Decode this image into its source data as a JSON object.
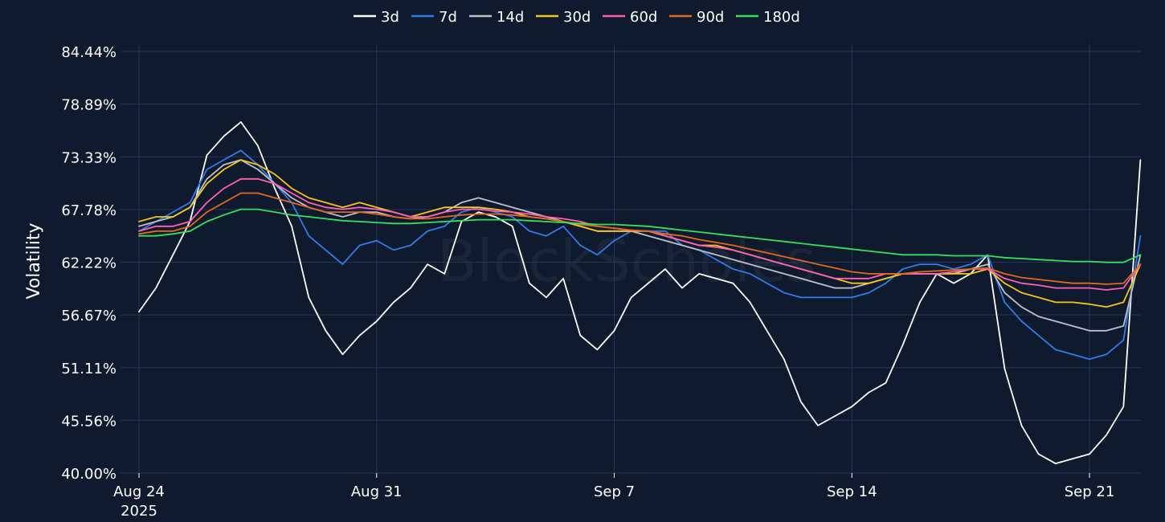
{
  "watermark": "BlockScholes",
  "chart_data": {
    "type": "line",
    "title": "",
    "xlabel": "",
    "ylabel": "Volatility",
    "y_unit": "%",
    "ylim": [
      40.0,
      84.44
    ],
    "y_ticks": [
      40.0,
      45.56,
      51.11,
      56.67,
      62.22,
      67.78,
      73.33,
      78.89,
      84.44
    ],
    "y_tick_labels": [
      "40.00%",
      "45.56%",
      "51.11%",
      "56.67%",
      "62.22%",
      "67.78%",
      "73.33%",
      "78.89%",
      "84.44%"
    ],
    "xlim": [
      "2025-08-24",
      "2025-09-22T18:00"
    ],
    "x_ticks": [
      {
        "date": "2025-08-24",
        "label": "Aug 24",
        "sublabel": "2025"
      },
      {
        "date": "2025-08-31",
        "label": "Aug 31",
        "sublabel": ""
      },
      {
        "date": "2025-09-07",
        "label": "Sep 7",
        "sublabel": ""
      },
      {
        "date": "2025-09-14",
        "label": "Sep 14",
        "sublabel": ""
      },
      {
        "date": "2025-09-21",
        "label": "Sep 21",
        "sublabel": ""
      }
    ],
    "grid": true,
    "legend_position": "top-center",
    "x": [
      "2025-08-24T00:00",
      "2025-08-24T12:00",
      "2025-08-25T00:00",
      "2025-08-25T12:00",
      "2025-08-26T00:00",
      "2025-08-26T12:00",
      "2025-08-27T00:00",
      "2025-08-27T12:00",
      "2025-08-28T00:00",
      "2025-08-28T12:00",
      "2025-08-29T00:00",
      "2025-08-29T12:00",
      "2025-08-30T00:00",
      "2025-08-30T12:00",
      "2025-08-31T00:00",
      "2025-08-31T12:00",
      "2025-09-01T00:00",
      "2025-09-01T12:00",
      "2025-09-02T00:00",
      "2025-09-02T12:00",
      "2025-09-03T00:00",
      "2025-09-03T12:00",
      "2025-09-04T00:00",
      "2025-09-04T12:00",
      "2025-09-05T00:00",
      "2025-09-05T12:00",
      "2025-09-06T00:00",
      "2025-09-06T12:00",
      "2025-09-07T00:00",
      "2025-09-07T12:00",
      "2025-09-08T00:00",
      "2025-09-08T12:00",
      "2025-09-09T00:00",
      "2025-09-09T12:00",
      "2025-09-10T00:00",
      "2025-09-10T12:00",
      "2025-09-11T00:00",
      "2025-09-11T12:00",
      "2025-09-12T00:00",
      "2025-09-12T12:00",
      "2025-09-13T00:00",
      "2025-09-13T12:00",
      "2025-09-14T00:00",
      "2025-09-14T12:00",
      "2025-09-15T00:00",
      "2025-09-15T12:00",
      "2025-09-16T00:00",
      "2025-09-16T12:00",
      "2025-09-17T00:00",
      "2025-09-17T12:00",
      "2025-09-18T00:00",
      "2025-09-18T12:00",
      "2025-09-19T00:00",
      "2025-09-19T12:00",
      "2025-09-20T00:00",
      "2025-09-20T12:00",
      "2025-09-21T00:00",
      "2025-09-21T12:00",
      "2025-09-22T00:00",
      "2025-09-22T12:00"
    ],
    "series": [
      {
        "name": "3d",
        "color": "#ffffff",
        "values": [
          57.0,
          59.5,
          63.0,
          66.5,
          73.5,
          75.5,
          77.0,
          74.5,
          70.0,
          66.0,
          58.5,
          55.0,
          52.5,
          54.5,
          56.0,
          58.0,
          59.5,
          62.0,
          61.0,
          66.5,
          67.5,
          67.0,
          66.0,
          60.0,
          58.5,
          60.5,
          54.5,
          53.0,
          55.0,
          58.5,
          60.0,
          61.5,
          59.5,
          61.0,
          60.5,
          60.0,
          58.0,
          55.0,
          52.0,
          47.5,
          45.0,
          46.0,
          47.0,
          48.5,
          49.5,
          53.5,
          58.0,
          61.0,
          60.0,
          61.0,
          63.0,
          51.0,
          45.0,
          42.0,
          41.0,
          41.5,
          42.0,
          44.0,
          47.0,
          73.0
        ]
      },
      {
        "name": "7d",
        "color": "#2e7ce8",
        "values": [
          65.5,
          66.5,
          67.5,
          68.5,
          72.0,
          73.0,
          74.0,
          72.5,
          70.5,
          68.5,
          65.0,
          63.5,
          62.0,
          64.0,
          64.5,
          63.5,
          64.0,
          65.5,
          66.0,
          67.5,
          68.0,
          67.5,
          67.0,
          65.5,
          65.0,
          66.0,
          64.0,
          63.0,
          64.5,
          65.5,
          65.5,
          65.5,
          64.0,
          63.5,
          62.5,
          61.5,
          61.0,
          60.0,
          59.0,
          58.5,
          58.5,
          58.5,
          58.5,
          59.0,
          60.0,
          61.5,
          62.0,
          62.0,
          61.5,
          62.0,
          63.0,
          58.0,
          56.0,
          54.5,
          53.0,
          52.5,
          52.0,
          52.5,
          54.0,
          65.0
        ]
      },
      {
        "name": "14d",
        "color": "#c0c0c8",
        "values": [
          66.0,
          66.5,
          67.0,
          68.0,
          71.0,
          72.5,
          73.0,
          72.0,
          70.5,
          69.0,
          68.0,
          67.5,
          67.0,
          67.5,
          67.5,
          67.0,
          66.8,
          67.0,
          67.5,
          68.5,
          69.0,
          68.5,
          68.0,
          67.5,
          67.0,
          66.5,
          66.0,
          65.5,
          65.5,
          65.5,
          65.0,
          64.5,
          64.0,
          63.5,
          63.0,
          62.5,
          62.0,
          61.5,
          61.0,
          60.5,
          60.0,
          59.5,
          59.5,
          60.0,
          60.5,
          61.0,
          61.0,
          61.0,
          61.0,
          61.5,
          62.0,
          59.0,
          57.5,
          56.5,
          56.0,
          55.5,
          55.0,
          55.0,
          55.5,
          63.0
        ]
      },
      {
        "name": "30d",
        "color": "#f5c518",
        "values": [
          66.5,
          67.0,
          67.0,
          68.0,
          70.5,
          72.0,
          73.0,
          72.5,
          71.5,
          70.0,
          69.0,
          68.5,
          68.0,
          68.5,
          68.0,
          67.5,
          67.0,
          67.5,
          68.0,
          68.0,
          68.0,
          67.8,
          67.5,
          67.0,
          66.8,
          66.5,
          66.0,
          65.5,
          65.5,
          65.5,
          65.5,
          65.0,
          64.5,
          64.0,
          64.0,
          63.5,
          63.0,
          62.5,
          62.0,
          61.5,
          61.0,
          60.5,
          60.0,
          60.0,
          60.5,
          61.0,
          61.0,
          61.0,
          61.0,
          61.0,
          61.5,
          60.0,
          59.0,
          58.5,
          58.0,
          58.0,
          57.8,
          57.5,
          58.0,
          62.0
        ]
      },
      {
        "name": "60d",
        "color": "#ff5fb4",
        "values": [
          65.5,
          66.0,
          66.0,
          66.5,
          68.5,
          70.0,
          71.0,
          71.0,
          70.5,
          69.5,
          68.5,
          68.0,
          67.8,
          68.0,
          67.8,
          67.5,
          67.0,
          67.0,
          67.5,
          67.8,
          67.8,
          67.6,
          67.5,
          67.3,
          67.0,
          66.8,
          66.5,
          66.0,
          65.8,
          65.6,
          65.5,
          65.0,
          64.5,
          64.0,
          63.8,
          63.5,
          63.0,
          62.5,
          62.0,
          61.5,
          61.0,
          60.5,
          60.5,
          60.5,
          61.0,
          61.0,
          61.0,
          61.0,
          61.2,
          61.5,
          61.5,
          60.5,
          60.0,
          59.8,
          59.5,
          59.5,
          59.5,
          59.3,
          59.5,
          62.0
        ]
      },
      {
        "name": "90d",
        "color": "#e06a1a",
        "values": [
          65.2,
          65.5,
          65.5,
          66.0,
          67.5,
          68.5,
          69.5,
          69.5,
          69.0,
          68.5,
          68.0,
          67.5,
          67.5,
          67.5,
          67.3,
          67.0,
          66.8,
          66.8,
          67.0,
          67.2,
          67.3,
          67.3,
          67.2,
          67.0,
          66.8,
          66.5,
          66.2,
          66.0,
          65.8,
          65.6,
          65.5,
          65.2,
          65.0,
          64.6,
          64.3,
          64.0,
          63.6,
          63.2,
          62.8,
          62.4,
          62.0,
          61.6,
          61.2,
          61.0,
          61.0,
          61.0,
          61.2,
          61.3,
          61.4,
          61.5,
          61.6,
          61.0,
          60.6,
          60.4,
          60.2,
          60.0,
          60.0,
          59.9,
          60.0,
          62.0
        ]
      },
      {
        "name": "180d",
        "color": "#35e05a",
        "values": [
          65.0,
          65.0,
          65.2,
          65.5,
          66.5,
          67.2,
          67.8,
          67.8,
          67.5,
          67.2,
          67.0,
          66.8,
          66.6,
          66.5,
          66.4,
          66.3,
          66.3,
          66.4,
          66.5,
          66.6,
          66.7,
          66.7,
          66.7,
          66.6,
          66.5,
          66.4,
          66.3,
          66.2,
          66.2,
          66.1,
          66.0,
          65.8,
          65.6,
          65.4,
          65.2,
          65.0,
          64.8,
          64.6,
          64.4,
          64.2,
          64.0,
          63.8,
          63.6,
          63.4,
          63.2,
          63.0,
          63.0,
          63.0,
          62.9,
          62.9,
          62.9,
          62.7,
          62.6,
          62.5,
          62.4,
          62.3,
          62.3,
          62.2,
          62.2,
          63.0
        ]
      }
    ]
  }
}
